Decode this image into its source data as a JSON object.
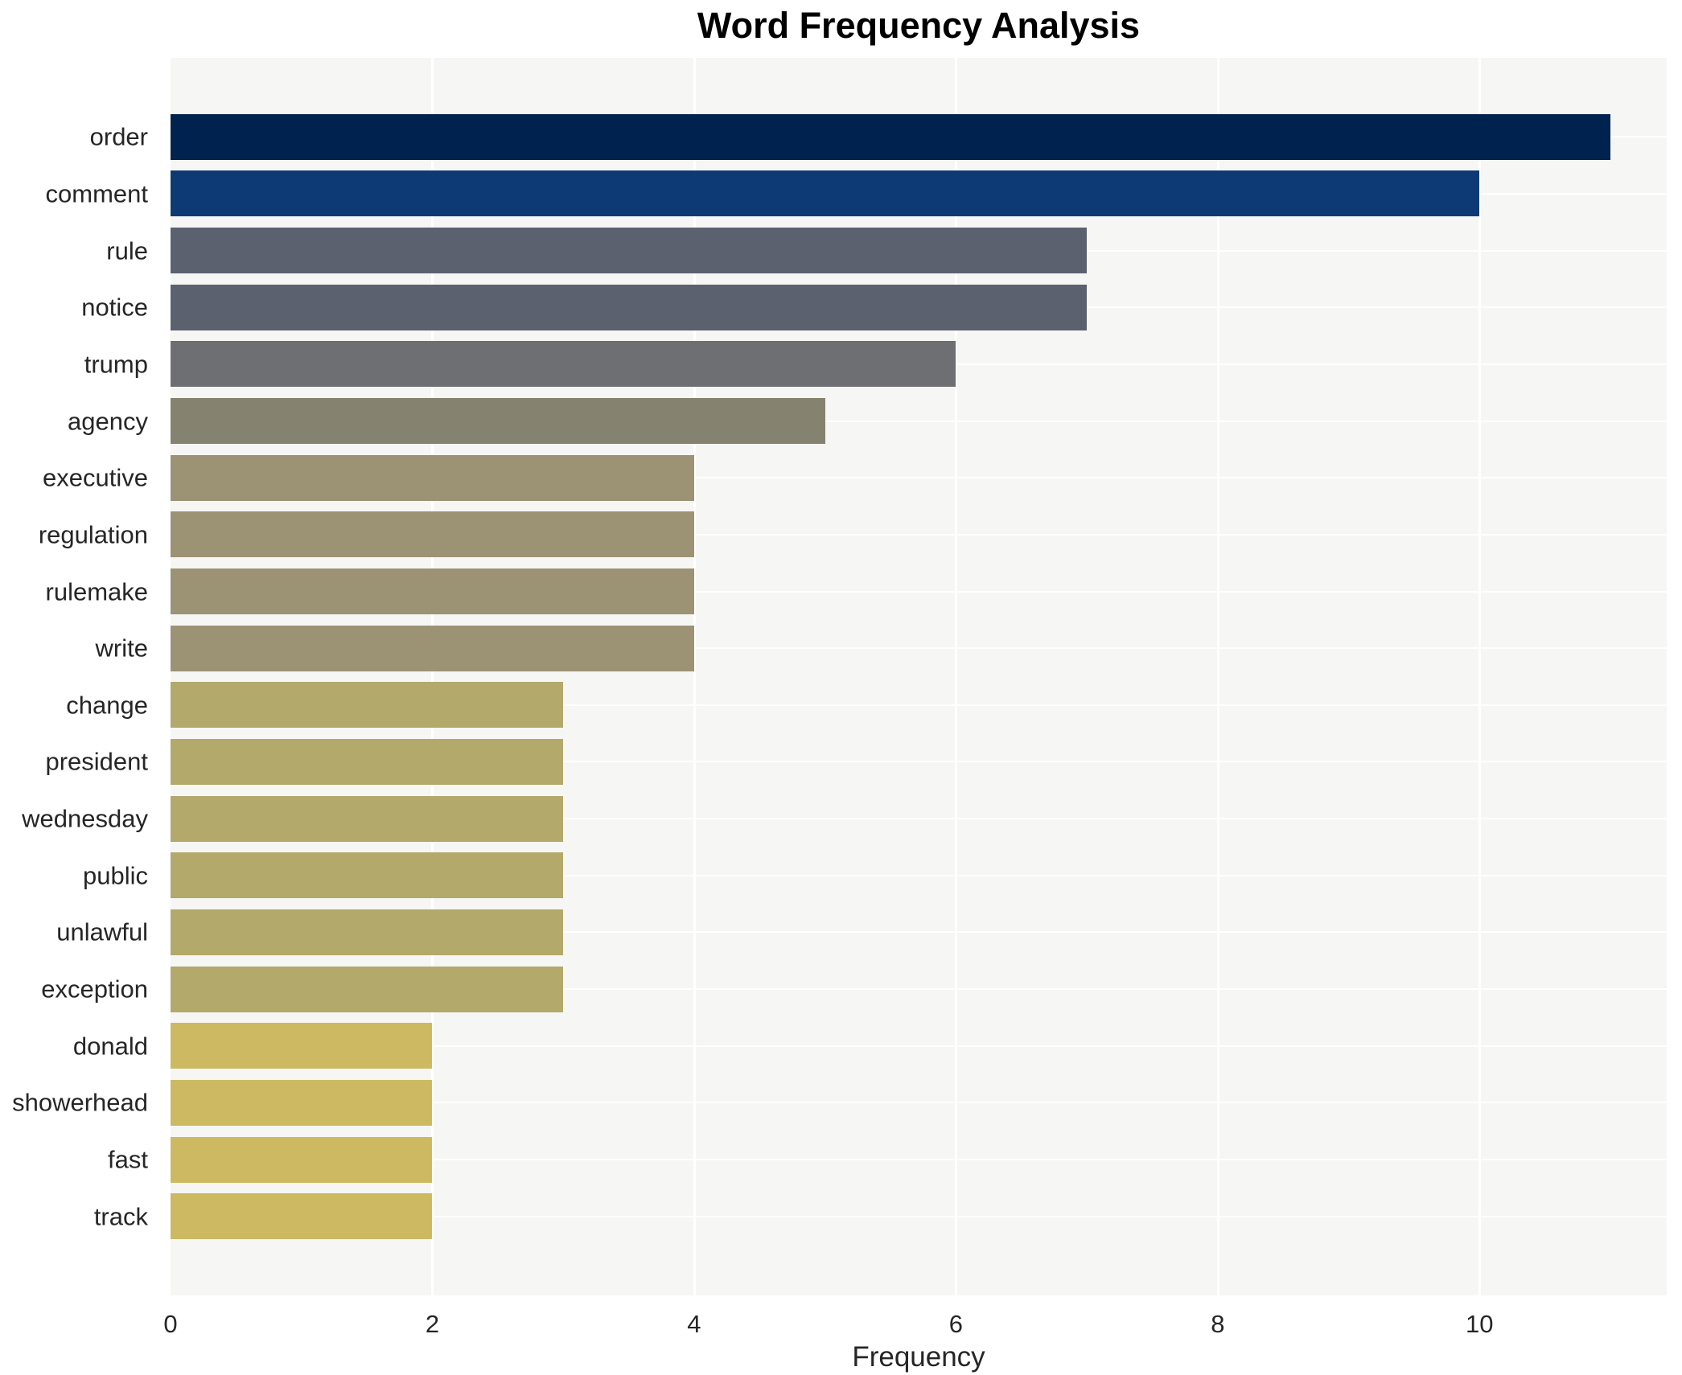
{
  "title": "Word Frequency Analysis",
  "xlabel": "Frequency",
  "chart_data": {
    "type": "bar",
    "orientation": "horizontal",
    "title": "Word Frequency Analysis",
    "xlabel": "Frequency",
    "ylabel": "",
    "categories": [
      "order",
      "comment",
      "rule",
      "notice",
      "trump",
      "agency",
      "executive",
      "regulation",
      "rulemake",
      "write",
      "change",
      "president",
      "wednesday",
      "public",
      "unlawful",
      "exception",
      "donald",
      "showerhead",
      "fast",
      "track"
    ],
    "values": [
      11,
      10,
      7,
      7,
      6,
      5,
      4,
      4,
      4,
      4,
      3,
      3,
      3,
      3,
      3,
      3,
      2,
      2,
      2,
      2
    ],
    "bar_colors": [
      "#00224e",
      "#0d3a75",
      "#5c6170",
      "#5c6170",
      "#6e6f72",
      "#85836f",
      "#9b9374",
      "#9b9374",
      "#9b9374",
      "#9b9374",
      "#b2a96b",
      "#b2a96b",
      "#b2a96b",
      "#b2a96b",
      "#b2a96b",
      "#b2a96b",
      "#cdb961",
      "#cdb961",
      "#cdb961",
      "#cdb961"
    ],
    "x_ticks": [
      0,
      2,
      4,
      6,
      8,
      10
    ],
    "x_tick_labels": [
      "0",
      "2",
      "4",
      "6",
      "8",
      "10"
    ],
    "xlim": [
      0,
      11.43
    ],
    "grid": true,
    "legend_position": "none",
    "plot_background": "#f6f6f4",
    "gridline_color": "#ffffff",
    "text_color": "#262626",
    "title_color": "#000000"
  }
}
